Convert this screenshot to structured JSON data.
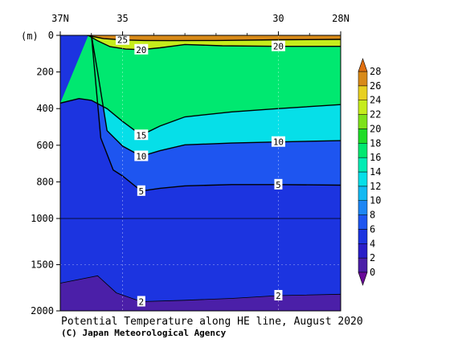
{
  "chart_data": {
    "type": "contour",
    "title": "Potential Temperature along HE line, August 2020",
    "credit": "(C) Japan Meteorological Agency",
    "x_axis": {
      "unit": "N",
      "range": [
        37,
        28
      ],
      "ticks": [
        {
          "value": 37,
          "label": "37N"
        },
        {
          "value": 35,
          "label": "35"
        },
        {
          "value": 30,
          "label": "30"
        },
        {
          "value": 28,
          "label": "28N"
        }
      ]
    },
    "y_axis": {
      "unit": "(m)",
      "range": [
        0,
        2000
      ],
      "ticks": [
        {
          "value": 0,
          "label": "0"
        },
        {
          "value": 200,
          "label": "200"
        },
        {
          "value": 400,
          "label": "400"
        },
        {
          "value": 600,
          "label": "600"
        },
        {
          "value": 800,
          "label": "800"
        },
        {
          "value": 1000,
          "label": "1000"
        },
        {
          "value": 1500,
          "label": "1500"
        },
        {
          "value": 2000,
          "label": "2000"
        }
      ]
    },
    "colorbar": {
      "levels": [
        0,
        2,
        4,
        6,
        8,
        10,
        12,
        14,
        16,
        18,
        20,
        22,
        24,
        26,
        28
      ],
      "labels": [
        "0",
        "2",
        "4",
        "6",
        "8",
        "10",
        "12",
        "14",
        "16",
        "18",
        "20",
        "22",
        "24",
        "26",
        "28"
      ],
      "colors": [
        "#4b1fa8",
        "#2a1ec8",
        "#1c34e0",
        "#1e55f0",
        "#1d86f4",
        "#12b9f2",
        "#06dfe8",
        "#00ecb4",
        "#00e870",
        "#1fdc28",
        "#7ee21a",
        "#c6ec1c",
        "#e8d020",
        "#d88a18"
      ],
      "arrow_colors": {
        "below": "#6a0a9a",
        "above": "#e06f10"
      }
    },
    "isotherms": [
      {
        "temp": 25,
        "label": "25",
        "points": [
          [
            36.15,
            0
          ],
          [
            35.6,
            18
          ],
          [
            35.0,
            25
          ],
          [
            34.3,
            28
          ],
          [
            33.5,
            29
          ],
          [
            32.0,
            28
          ],
          [
            30.0,
            24
          ],
          [
            28.0,
            22
          ]
        ]
      },
      {
        "temp": 20,
        "label": "20",
        "points": [
          [
            36.1,
            0
          ],
          [
            35.8,
            30
          ],
          [
            35.4,
            62
          ],
          [
            34.9,
            75
          ],
          [
            34.4,
            78
          ],
          [
            33.8,
            68
          ],
          [
            33.0,
            50
          ],
          [
            31.8,
            57
          ],
          [
            30.0,
            60
          ],
          [
            28.0,
            60
          ]
        ]
      },
      {
        "temp": 15,
        "label": "15",
        "points": [
          [
            37.0,
            370
          ],
          [
            36.4,
            345
          ],
          [
            36.0,
            355
          ],
          [
            35.5,
            400
          ],
          [
            35.0,
            470
          ],
          [
            34.4,
            545
          ],
          [
            33.8,
            495
          ],
          [
            33.0,
            445
          ],
          [
            31.5,
            418
          ],
          [
            30.0,
            400
          ],
          [
            28.0,
            378
          ]
        ]
      },
      {
        "temp": 10,
        "label": "10",
        "points": [
          [
            36.0,
            0
          ],
          [
            35.8,
            200
          ],
          [
            35.5,
            520
          ],
          [
            35.0,
            605
          ],
          [
            34.4,
            660
          ],
          [
            33.8,
            630
          ],
          [
            33.0,
            598
          ],
          [
            31.5,
            588
          ],
          [
            30.0,
            582
          ],
          [
            28.0,
            575
          ]
        ]
      },
      {
        "temp": 5,
        "label": "5",
        "points": [
          [
            36.0,
            0
          ],
          [
            35.7,
            560
          ],
          [
            35.3,
            735
          ],
          [
            35.0,
            768
          ],
          [
            34.4,
            850
          ],
          [
            33.8,
            835
          ],
          [
            33.0,
            822
          ],
          [
            31.5,
            815
          ],
          [
            30.0,
            815
          ],
          [
            28.0,
            818
          ]
        ]
      },
      {
        "temp": 2,
        "label": "2",
        "points": [
          [
            37.0,
            1700
          ],
          [
            35.8,
            1620
          ],
          [
            35.2,
            1805
          ],
          [
            34.4,
            1900
          ],
          [
            33.0,
            1885
          ],
          [
            31.5,
            1865
          ],
          [
            30.0,
            1835
          ],
          [
            28.0,
            1820
          ]
        ]
      }
    ],
    "contour_labels": [
      {
        "label": "25",
        "x": 35.0,
        "y": 25
      },
      {
        "label": "20",
        "x": 34.4,
        "y": 78
      },
      {
        "label": "20",
        "x": 30.0,
        "y": 60
      },
      {
        "label": "15",
        "x": 34.4,
        "y": 545
      },
      {
        "label": "10",
        "x": 34.4,
        "y": 660
      },
      {
        "label": "10",
        "x": 30.0,
        "y": 582
      },
      {
        "label": "5",
        "x": 34.4,
        "y": 850
      },
      {
        "label": "5",
        "x": 30.0,
        "y": 815
      },
      {
        "label": "2",
        "x": 34.4,
        "y": 1900
      },
      {
        "label": "2",
        "x": 30.0,
        "y": 1835
      }
    ]
  }
}
